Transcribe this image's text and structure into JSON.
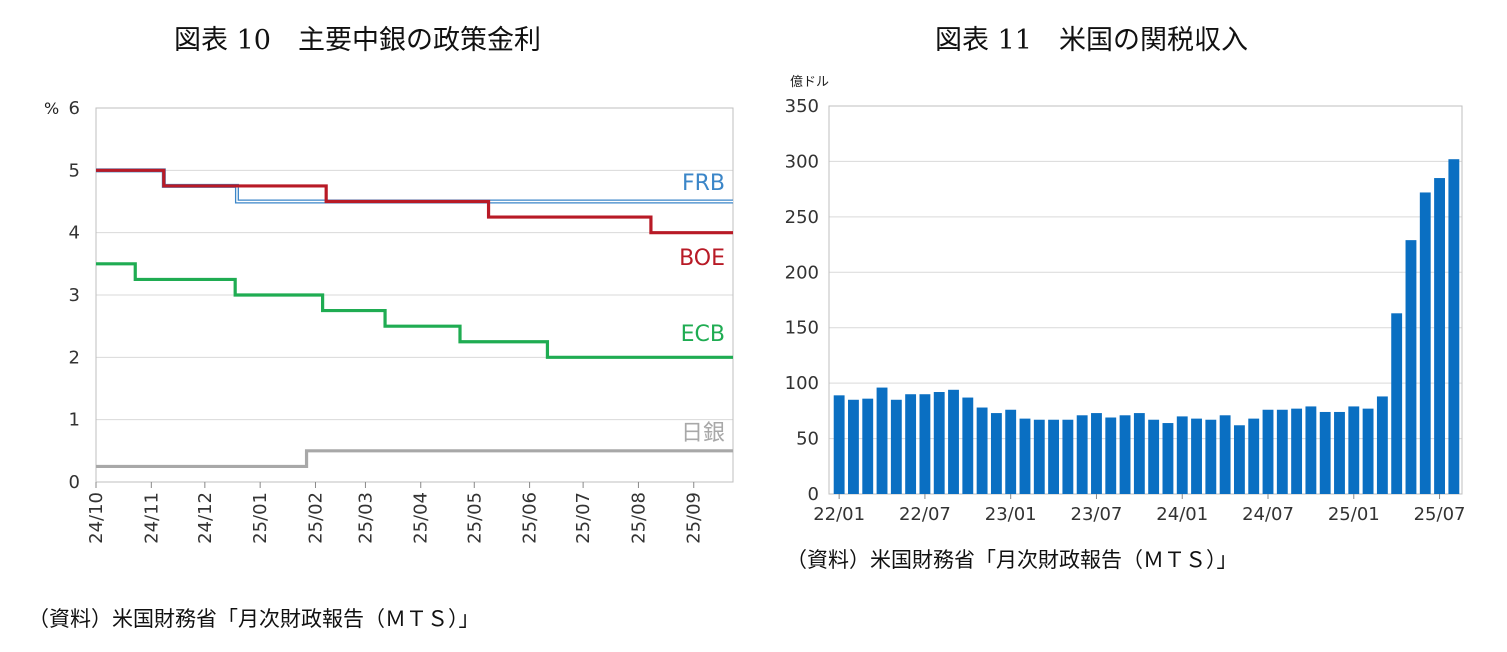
{
  "left_title": "図表 10　主要中銀の政策金利",
  "right_title": "図表 11　米国の関税収入",
  "left_source": "（資料）米国財務省「月次財政報告（ＭＴＳ）」",
  "right_source": "（資料）米国財務省「月次財政報告（ＭＴＳ）」",
  "colors": {
    "FRB": "#3b86c8",
    "BOE": "#b81a26",
    "ECB": "#1fac52",
    "BOJ": "#a8a8a8",
    "bar": "#0a6fc2",
    "grid": "#d9d9d9",
    "frame": "#bfbfbf"
  },
  "chart_data": [
    {
      "type": "line",
      "title": "図表 10　主要中銀の政策金利",
      "ylabel": "%",
      "ylim": [
        0,
        6
      ],
      "yticks": [
        "0",
        "1",
        "2",
        "3",
        "4",
        "5",
        "6"
      ],
      "xlim": [
        "2024-10-01",
        "2025-09-23"
      ],
      "xticks": [
        {
          "date": "2024-10-01",
          "label": "24/10"
        },
        {
          "date": "2024-11-01",
          "label": "24/11"
        },
        {
          "date": "2024-12-01",
          "label": "24/12"
        },
        {
          "date": "2025-01-01",
          "label": "25/01"
        },
        {
          "date": "2025-02-01",
          "label": "25/02"
        },
        {
          "date": "2025-03-01",
          "label": "25/03"
        },
        {
          "date": "2025-04-01",
          "label": "25/04"
        },
        {
          "date": "2025-05-01",
          "label": "25/05"
        },
        {
          "date": "2025-06-01",
          "label": "25/06"
        },
        {
          "date": "2025-07-01",
          "label": "25/07"
        },
        {
          "date": "2025-08-01",
          "label": "25/08"
        },
        {
          "date": "2025-09-01",
          "label": "25/09"
        }
      ],
      "grid": true,
      "series": [
        {
          "name": "FRB",
          "style": "double-line",
          "steps": [
            {
              "date": "2024-10-01",
              "value": 5.0
            },
            {
              "date": "2024-11-08",
              "value": 4.75
            },
            {
              "date": "2024-12-19",
              "value": 4.5
            }
          ]
        },
        {
          "name": "BOE",
          "steps": [
            {
              "date": "2024-10-01",
              "value": 5.0
            },
            {
              "date": "2024-11-08",
              "value": 4.75
            },
            {
              "date": "2025-02-07",
              "value": 4.5
            },
            {
              "date": "2025-05-09",
              "value": 4.25
            },
            {
              "date": "2025-08-08",
              "value": 4.0
            }
          ]
        },
        {
          "name": "ECB",
          "steps": [
            {
              "date": "2024-10-01",
              "value": 3.5
            },
            {
              "date": "2024-10-23",
              "value": 3.25
            },
            {
              "date": "2024-12-18",
              "value": 3.0
            },
            {
              "date": "2025-02-05",
              "value": 2.75
            },
            {
              "date": "2025-03-12",
              "value": 2.5
            },
            {
              "date": "2025-04-23",
              "value": 2.25
            },
            {
              "date": "2025-06-11",
              "value": 2.0
            }
          ]
        },
        {
          "name": "日銀",
          "steps": [
            {
              "date": "2024-10-01",
              "value": 0.25
            },
            {
              "date": "2025-01-27",
              "value": 0.5
            }
          ]
        }
      ]
    },
    {
      "type": "bar",
      "title": "図表 11　米国の関税収入",
      "ylabel": "億ドル",
      "ylim": [
        0,
        350
      ],
      "yticks": [
        "0",
        "50",
        "100",
        "150",
        "200",
        "250",
        "300",
        "350"
      ],
      "xticks": [
        "22/01",
        "22/07",
        "23/01",
        "23/07",
        "24/01",
        "24/07",
        "25/01",
        "25/07"
      ],
      "grid": true,
      "categories": [
        "22/01",
        "22/02",
        "22/03",
        "22/04",
        "22/05",
        "22/06",
        "22/07",
        "22/08",
        "22/09",
        "22/10",
        "22/11",
        "22/12",
        "23/01",
        "23/02",
        "23/03",
        "23/04",
        "23/05",
        "23/06",
        "23/07",
        "23/08",
        "23/09",
        "23/10",
        "23/11",
        "23/12",
        "24/01",
        "24/02",
        "24/03",
        "24/04",
        "24/05",
        "24/06",
        "24/07",
        "24/08",
        "24/09",
        "24/10",
        "24/11",
        "24/12",
        "25/01",
        "25/02",
        "25/03",
        "25/04",
        "25/05",
        "25/06",
        "25/07",
        "25/08"
      ],
      "values": [
        89,
        85,
        86,
        96,
        85,
        90,
        90,
        92,
        94,
        87,
        78,
        73,
        76,
        68,
        67,
        67,
        67,
        71,
        73,
        69,
        71,
        73,
        67,
        64,
        70,
        68,
        67,
        71,
        62,
        68,
        76,
        76,
        77,
        79,
        74,
        74,
        79,
        77,
        88,
        163,
        229,
        272,
        285,
        302
      ]
    }
  ]
}
